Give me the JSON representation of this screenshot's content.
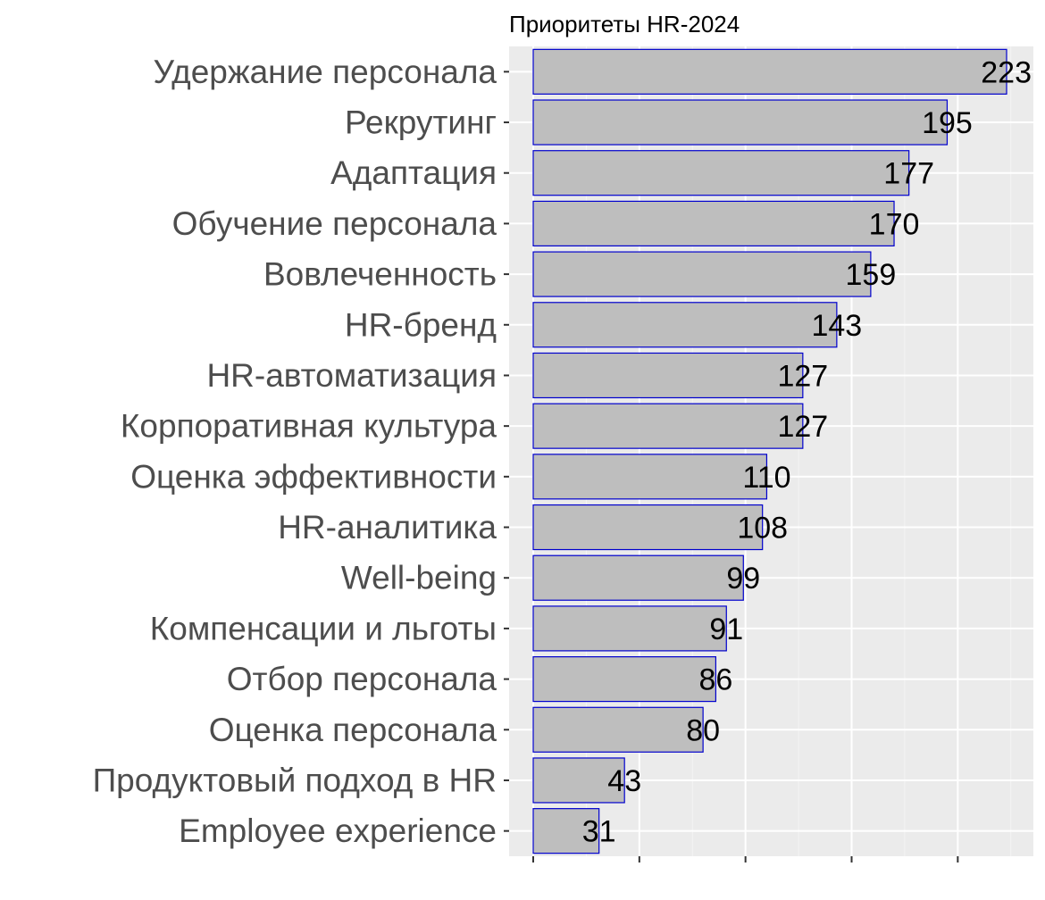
{
  "chart_data": {
    "type": "bar",
    "orientation": "horizontal",
    "title": "Приоритеты HR-2024",
    "xlabel": "",
    "ylabel": "",
    "xlim": [
      0,
      235
    ],
    "grid": true,
    "categories": [
      "Удержание персонала",
      "Рекрутинг",
      "Адаптация",
      "Обучение персонала",
      "Вовлеченность",
      "HR-бренд",
      "HR-автоматизация",
      "Корпоративная культура",
      "Оценка эффективности",
      "HR-аналитика",
      "Well-being",
      "Компенсации и льготы",
      "Отбор персонала",
      "Оценка персонала",
      "Продуктовый подход в HR",
      "Employee experience"
    ],
    "values": [
      223,
      195,
      177,
      170,
      159,
      143,
      127,
      127,
      110,
      108,
      99,
      91,
      86,
      80,
      43,
      31
    ],
    "colors": {
      "panel_background": "#ebebeb",
      "grid_major": "#ffffff",
      "grid_minor": "#f4f4f4",
      "bar_fill": "#bebebe",
      "bar_outline": "#0000cd",
      "tick": "#333333",
      "category_text": "#4d4d4d",
      "value_text": "#000000"
    }
  }
}
